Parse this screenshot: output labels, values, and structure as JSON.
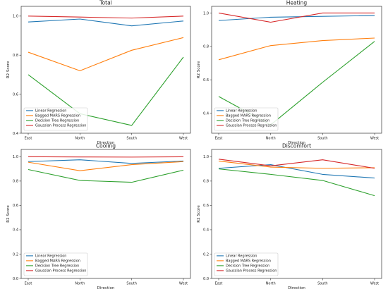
{
  "chart_data": [
    {
      "type": "line",
      "title": "Total",
      "xlabel": "Direction",
      "ylabel": "R2 Score",
      "categories": [
        "East",
        "North",
        "South",
        "West"
      ],
      "ylim": [
        0.4,
        1.05
      ],
      "yticks": [
        0.4,
        0.6,
        0.8,
        1.0
      ],
      "yticklabels": [
        "0.4",
        "0.6",
        "0.8",
        "1.0"
      ],
      "grid": false,
      "legend": "lower-left",
      "series": [
        {
          "name": "Linear Regression",
          "color": "#1f77b4",
          "values": [
            0.97,
            0.985,
            0.95,
            0.975
          ]
        },
        {
          "name": "Bagged MARS Regression",
          "color": "#ff7f0e",
          "values": [
            0.815,
            0.72,
            0.825,
            0.89
          ]
        },
        {
          "name": "Decision Tree Regression",
          "color": "#2ca02c",
          "values": [
            0.7,
            0.5,
            0.44,
            0.79
          ]
        },
        {
          "name": "Gaussian Process Regression",
          "color": "#d62728",
          "values": [
            1.0,
            0.995,
            0.99,
            1.0
          ]
        }
      ]
    },
    {
      "type": "line",
      "title": "Heating",
      "xlabel": "Direction",
      "ylabel": "R2 Score",
      "categories": [
        "East",
        "North",
        "South",
        "West"
      ],
      "ylim": [
        0.28,
        1.04
      ],
      "yticks": [
        0.4,
        0.6,
        0.8,
        1.0
      ],
      "yticklabels": [
        "0.4",
        "0.6",
        "0.8",
        "1.0"
      ],
      "grid": false,
      "legend": "lower-left",
      "series": [
        {
          "name": "Linear Regression",
          "color": "#1f77b4",
          "values": [
            0.955,
            0.975,
            0.98,
            0.985
          ]
        },
        {
          "name": "Bagged MARS Regression",
          "color": "#ff7f0e",
          "values": [
            0.72,
            0.805,
            0.835,
            0.85
          ]
        },
        {
          "name": "Decision Tree Regression",
          "color": "#2ca02c",
          "values": [
            0.5,
            0.33,
            0.585,
            0.83
          ]
        },
        {
          "name": "Gaussian Process Regression",
          "color": "#d62728",
          "values": [
            1.0,
            0.945,
            1.0,
            1.0
          ]
        }
      ]
    },
    {
      "type": "line",
      "title": "Cooling",
      "xlabel": "Direction",
      "ylabel": "R2 Score",
      "categories": [
        "East",
        "North",
        "South",
        "West"
      ],
      "ylim": [
        0.0,
        1.06
      ],
      "yticks": [
        0.0,
        0.2,
        0.4,
        0.6,
        0.8,
        1.0
      ],
      "yticklabels": [
        "0.0",
        "0.2",
        "0.4",
        "0.6",
        "0.8",
        "1.0"
      ],
      "grid": false,
      "legend": "lower-left",
      "series": [
        {
          "name": "Linear Regression",
          "color": "#1f77b4",
          "values": [
            0.96,
            0.975,
            0.945,
            0.965
          ]
        },
        {
          "name": "Bagged MARS Regression",
          "color": "#ff7f0e",
          "values": [
            0.955,
            0.885,
            0.935,
            0.96
          ]
        },
        {
          "name": "Decision Tree Regression",
          "color": "#2ca02c",
          "values": [
            0.895,
            0.805,
            0.79,
            0.89
          ]
        },
        {
          "name": "Gaussian Process Regression",
          "color": "#d62728",
          "values": [
            1.0,
            0.998,
            0.997,
            1.0
          ]
        }
      ]
    },
    {
      "type": "line",
      "title": "Discomfort",
      "xlabel": "Direction",
      "ylabel": "R2 Score",
      "categories": [
        "East",
        "North",
        "South",
        "West"
      ],
      "ylim": [
        0.0,
        1.06
      ],
      "yticks": [
        0.0,
        0.2,
        0.4,
        0.6,
        0.8,
        1.0
      ],
      "yticklabels": [
        "0.0",
        "0.2",
        "0.4",
        "0.6",
        "0.8",
        "1.0"
      ],
      "grid": false,
      "legend": "lower-left",
      "series": [
        {
          "name": "Linear Regression",
          "color": "#1f77b4",
          "values": [
            0.905,
            0.935,
            0.855,
            0.825
          ]
        },
        {
          "name": "Bagged MARS Regression",
          "color": "#ff7f0e",
          "values": [
            0.965,
            0.915,
            0.905,
            0.91
          ]
        },
        {
          "name": "Decision Tree Regression",
          "color": "#2ca02c",
          "values": [
            0.9,
            0.855,
            0.805,
            0.68
          ]
        },
        {
          "name": "Gaussian Process Regression",
          "color": "#d62728",
          "values": [
            0.98,
            0.925,
            0.975,
            0.905
          ]
        }
      ]
    }
  ]
}
